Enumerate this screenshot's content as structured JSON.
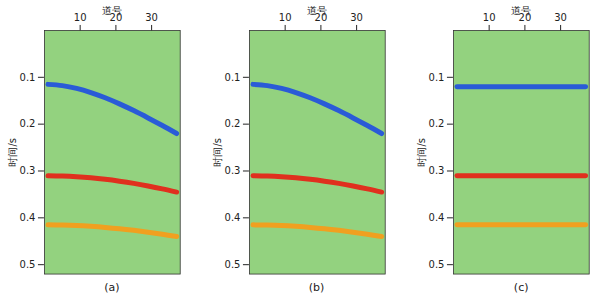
{
  "chart_data": [
    {
      "type": "line",
      "caption": "(a)",
      "x_label": "道号",
      "y_label": "时间/s",
      "xlim": [
        0,
        38
      ],
      "xticks": [
        10,
        20,
        30
      ],
      "ylim": [
        0,
        0.52
      ],
      "yticks": [
        0.1,
        0.2,
        0.3,
        0.4,
        0.5
      ],
      "x": [
        1,
        5,
        9,
        13,
        17,
        21,
        25,
        29,
        33,
        37
      ],
      "series": [
        {
          "color": "#2a5bd7",
          "values": [
            0.1151,
            0.1178,
            0.1237,
            0.1325,
            0.1437,
            0.1567,
            0.1711,
            0.1867,
            0.203,
            0.22
          ]
        },
        {
          "color": "#e0301e",
          "values": [
            0.31,
            0.3107,
            0.3122,
            0.3145,
            0.3177,
            0.3217,
            0.3264,
            0.3319,
            0.3381,
            0.345
          ]
        },
        {
          "color": "#f0a020",
          "values": [
            0.415,
            0.4155,
            0.4165,
            0.4182,
            0.4204,
            0.4232,
            0.4267,
            0.4307,
            0.4352,
            0.44
          ]
        }
      ]
    },
    {
      "type": "line",
      "caption": "(b)",
      "x_label": "道号",
      "y_label": "时间/s",
      "xlim": [
        0,
        38
      ],
      "xticks": [
        10,
        20,
        30
      ],
      "ylim": [
        0,
        0.52
      ],
      "yticks": [
        0.1,
        0.2,
        0.3,
        0.4,
        0.5
      ],
      "x": [
        1,
        5,
        9,
        13,
        17,
        21,
        25,
        29,
        33,
        37
      ],
      "series": [
        {
          "color": "#2a5bd7",
          "values": [
            0.1151,
            0.1178,
            0.1237,
            0.1325,
            0.1437,
            0.1567,
            0.1711,
            0.1867,
            0.203,
            0.22
          ]
        },
        {
          "color": "#e0301e",
          "values": [
            0.31,
            0.3107,
            0.3122,
            0.3145,
            0.3177,
            0.3217,
            0.3264,
            0.3319,
            0.3381,
            0.345
          ]
        },
        {
          "color": "#f0a020",
          "values": [
            0.415,
            0.4155,
            0.4165,
            0.4182,
            0.4204,
            0.4232,
            0.4267,
            0.4307,
            0.4352,
            0.44
          ]
        }
      ]
    },
    {
      "type": "line",
      "caption": "(c)",
      "x_label": "道号",
      "y_label": "时间/s",
      "xlim": [
        0,
        38
      ],
      "xticks": [
        10,
        20,
        30
      ],
      "ylim": [
        0,
        0.52
      ],
      "yticks": [
        0.1,
        0.2,
        0.3,
        0.4,
        0.5
      ],
      "x": [
        1,
        5,
        9,
        13,
        17,
        21,
        25,
        29,
        33,
        37
      ],
      "series": [
        {
          "color": "#2a5bd7",
          "values": [
            0.12,
            0.12,
            0.12,
            0.12,
            0.12,
            0.12,
            0.12,
            0.12,
            0.12,
            0.12
          ]
        },
        {
          "color": "#e0301e",
          "values": [
            0.31,
            0.31,
            0.31,
            0.31,
            0.31,
            0.31,
            0.31,
            0.31,
            0.31,
            0.31
          ]
        },
        {
          "color": "#f0a020",
          "values": [
            0.415,
            0.415,
            0.415,
            0.415,
            0.415,
            0.415,
            0.415,
            0.415,
            0.415,
            0.415
          ]
        }
      ]
    }
  ]
}
